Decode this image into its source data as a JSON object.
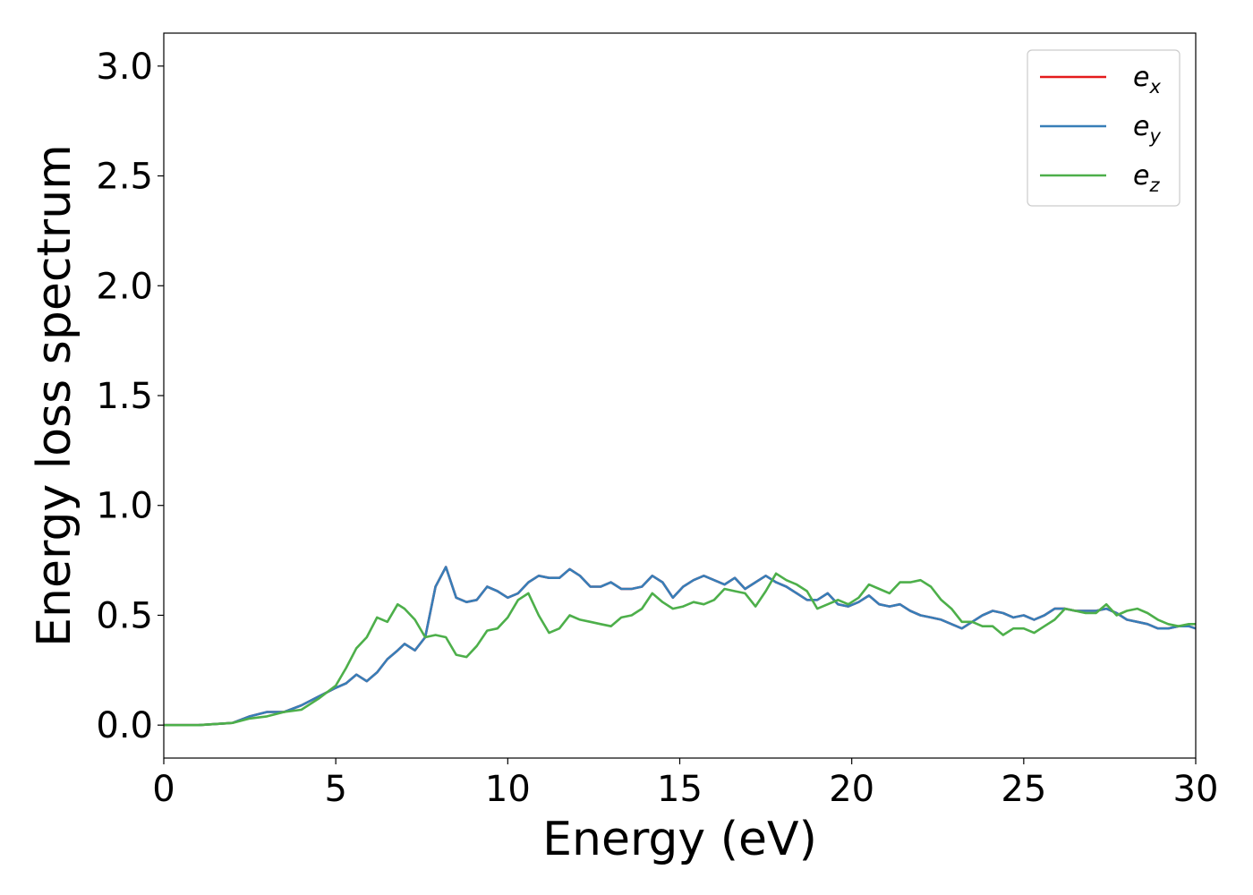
{
  "chart_data": {
    "type": "line",
    "title": "",
    "xlabel": "Energy (eV)",
    "ylabel": "Energy loss spectrum",
    "xlim": [
      0,
      30
    ],
    "ylim": [
      -0.15,
      3.15
    ],
    "xticks": [
      0,
      5,
      10,
      15,
      20,
      25,
      30
    ],
    "xtick_labels": [
      "0",
      "5",
      "10",
      "15",
      "20",
      "25",
      "30"
    ],
    "yticks": [
      0.0,
      0.5,
      1.0,
      1.5,
      2.0,
      2.5,
      3.0
    ],
    "ytick_labels": [
      "0.0",
      "0.5",
      "1.0",
      "1.5",
      "2.0",
      "2.5",
      "3.0"
    ],
    "grid": false,
    "legend_position": "top-right",
    "series": [
      {
        "name": "e_x",
        "label_base": "e",
        "label_sub": "x",
        "color": "#e41a1c",
        "x": [
          0,
          1,
          2,
          2.5,
          3,
          3.5,
          4,
          4.5,
          5,
          5.3,
          5.6,
          5.9,
          6.2,
          6.5,
          6.8,
          7.0,
          7.3,
          7.6,
          7.9,
          8.2,
          8.5,
          8.8,
          9.1,
          9.4,
          9.7,
          10.0,
          10.3,
          10.6,
          10.9,
          11.2,
          11.5,
          11.8,
          12.1,
          12.4,
          12.7,
          13.0,
          13.3,
          13.6,
          13.9,
          14.2,
          14.5,
          14.8,
          15.1,
          15.4,
          15.7,
          16.0,
          16.3,
          16.6,
          16.9,
          17.2,
          17.5,
          17.8,
          18.1,
          18.4,
          18.7,
          19.0,
          19.3,
          19.6,
          19.9,
          20.2,
          20.5,
          20.8,
          21.1,
          21.4,
          21.7,
          22.0,
          22.3,
          22.6,
          22.9,
          23.2,
          23.5,
          23.8,
          24.1,
          24.4,
          24.7,
          25.0,
          25.3,
          25.6,
          25.9,
          26.2,
          26.5,
          26.8,
          27.1,
          27.4,
          27.7,
          28.0,
          28.3,
          28.6,
          28.9,
          29.2,
          29.5,
          29.8,
          30.0
        ],
        "y": [
          0.0,
          0.0,
          0.01,
          0.04,
          0.06,
          0.06,
          0.09,
          0.13,
          0.17,
          0.19,
          0.23,
          0.2,
          0.24,
          0.3,
          0.34,
          0.37,
          0.34,
          0.4,
          0.63,
          0.72,
          0.58,
          0.56,
          0.57,
          0.63,
          0.61,
          0.58,
          0.6,
          0.65,
          0.68,
          0.67,
          0.67,
          0.71,
          0.68,
          0.63,
          0.63,
          0.65,
          0.62,
          0.62,
          0.63,
          0.68,
          0.65,
          0.58,
          0.63,
          0.66,
          0.68,
          0.66,
          0.64,
          0.67,
          0.62,
          0.65,
          0.68,
          0.65,
          0.63,
          0.6,
          0.57,
          0.57,
          0.6,
          0.55,
          0.54,
          0.56,
          0.59,
          0.55,
          0.54,
          0.55,
          0.52,
          0.5,
          0.49,
          0.48,
          0.46,
          0.44,
          0.47,
          0.5,
          0.52,
          0.51,
          0.49,
          0.5,
          0.48,
          0.5,
          0.53,
          0.53,
          0.52,
          0.52,
          0.52,
          0.53,
          0.51,
          0.48,
          0.47,
          0.46,
          0.44,
          0.44,
          0.45,
          0.45,
          0.44
        ]
      },
      {
        "name": "e_y",
        "label_base": "e",
        "label_sub": "y",
        "color": "#377eb8",
        "x": [
          0,
          1,
          2,
          2.5,
          3,
          3.5,
          4,
          4.5,
          5,
          5.3,
          5.6,
          5.9,
          6.2,
          6.5,
          6.8,
          7.0,
          7.3,
          7.6,
          7.9,
          8.2,
          8.5,
          8.8,
          9.1,
          9.4,
          9.7,
          10.0,
          10.3,
          10.6,
          10.9,
          11.2,
          11.5,
          11.8,
          12.1,
          12.4,
          12.7,
          13.0,
          13.3,
          13.6,
          13.9,
          14.2,
          14.5,
          14.8,
          15.1,
          15.4,
          15.7,
          16.0,
          16.3,
          16.6,
          16.9,
          17.2,
          17.5,
          17.8,
          18.1,
          18.4,
          18.7,
          19.0,
          19.3,
          19.6,
          19.9,
          20.2,
          20.5,
          20.8,
          21.1,
          21.4,
          21.7,
          22.0,
          22.3,
          22.6,
          22.9,
          23.2,
          23.5,
          23.8,
          24.1,
          24.4,
          24.7,
          25.0,
          25.3,
          25.6,
          25.9,
          26.2,
          26.5,
          26.8,
          27.1,
          27.4,
          27.7,
          28.0,
          28.3,
          28.6,
          28.9,
          29.2,
          29.5,
          29.8,
          30.0
        ],
        "y": [
          0.0,
          0.0,
          0.01,
          0.04,
          0.06,
          0.06,
          0.09,
          0.13,
          0.17,
          0.19,
          0.23,
          0.2,
          0.24,
          0.3,
          0.34,
          0.37,
          0.34,
          0.4,
          0.63,
          0.72,
          0.58,
          0.56,
          0.57,
          0.63,
          0.61,
          0.58,
          0.6,
          0.65,
          0.68,
          0.67,
          0.67,
          0.71,
          0.68,
          0.63,
          0.63,
          0.65,
          0.62,
          0.62,
          0.63,
          0.68,
          0.65,
          0.58,
          0.63,
          0.66,
          0.68,
          0.66,
          0.64,
          0.67,
          0.62,
          0.65,
          0.68,
          0.65,
          0.63,
          0.6,
          0.57,
          0.57,
          0.6,
          0.55,
          0.54,
          0.56,
          0.59,
          0.55,
          0.54,
          0.55,
          0.52,
          0.5,
          0.49,
          0.48,
          0.46,
          0.44,
          0.47,
          0.5,
          0.52,
          0.51,
          0.49,
          0.5,
          0.48,
          0.5,
          0.53,
          0.53,
          0.52,
          0.52,
          0.52,
          0.53,
          0.51,
          0.48,
          0.47,
          0.46,
          0.44,
          0.44,
          0.45,
          0.45,
          0.44
        ]
      },
      {
        "name": "e_z",
        "label_base": "e",
        "label_sub": "z",
        "color": "#4daf4a",
        "x": [
          0,
          1,
          2,
          2.5,
          3,
          3.5,
          4,
          4.5,
          5,
          5.3,
          5.6,
          5.9,
          6.2,
          6.5,
          6.8,
          7.0,
          7.3,
          7.6,
          7.9,
          8.2,
          8.5,
          8.8,
          9.1,
          9.4,
          9.7,
          10.0,
          10.3,
          10.6,
          10.9,
          11.2,
          11.5,
          11.8,
          12.1,
          12.4,
          12.7,
          13.0,
          13.3,
          13.6,
          13.9,
          14.2,
          14.5,
          14.8,
          15.1,
          15.4,
          15.7,
          16.0,
          16.3,
          16.6,
          16.9,
          17.2,
          17.5,
          17.8,
          18.1,
          18.4,
          18.7,
          19.0,
          19.3,
          19.6,
          19.9,
          20.2,
          20.5,
          20.8,
          21.1,
          21.4,
          21.7,
          22.0,
          22.3,
          22.6,
          22.9,
          23.2,
          23.5,
          23.8,
          24.1,
          24.4,
          24.7,
          25.0,
          25.3,
          25.6,
          25.9,
          26.2,
          26.5,
          26.8,
          27.1,
          27.4,
          27.7,
          28.0,
          28.3,
          28.6,
          28.9,
          29.2,
          29.5,
          29.8,
          30.0
        ],
        "y": [
          0.0,
          0.0,
          0.01,
          0.03,
          0.04,
          0.06,
          0.07,
          0.12,
          0.18,
          0.26,
          0.35,
          0.4,
          0.49,
          0.47,
          0.55,
          0.53,
          0.48,
          0.4,
          0.41,
          0.4,
          0.32,
          0.31,
          0.36,
          0.43,
          0.44,
          0.49,
          0.57,
          0.6,
          0.5,
          0.42,
          0.44,
          0.5,
          0.48,
          0.47,
          0.46,
          0.45,
          0.49,
          0.5,
          0.53,
          0.6,
          0.56,
          0.53,
          0.54,
          0.56,
          0.55,
          0.57,
          0.62,
          0.61,
          0.6,
          0.54,
          0.61,
          0.69,
          0.66,
          0.64,
          0.61,
          0.53,
          0.55,
          0.57,
          0.55,
          0.58,
          0.64,
          0.62,
          0.6,
          0.65,
          0.65,
          0.66,
          0.63,
          0.57,
          0.53,
          0.47,
          0.47,
          0.45,
          0.45,
          0.41,
          0.44,
          0.44,
          0.42,
          0.45,
          0.48,
          0.53,
          0.52,
          0.51,
          0.51,
          0.55,
          0.5,
          0.52,
          0.53,
          0.51,
          0.48,
          0.46,
          0.45,
          0.46,
          0.46
        ]
      }
    ]
  }
}
